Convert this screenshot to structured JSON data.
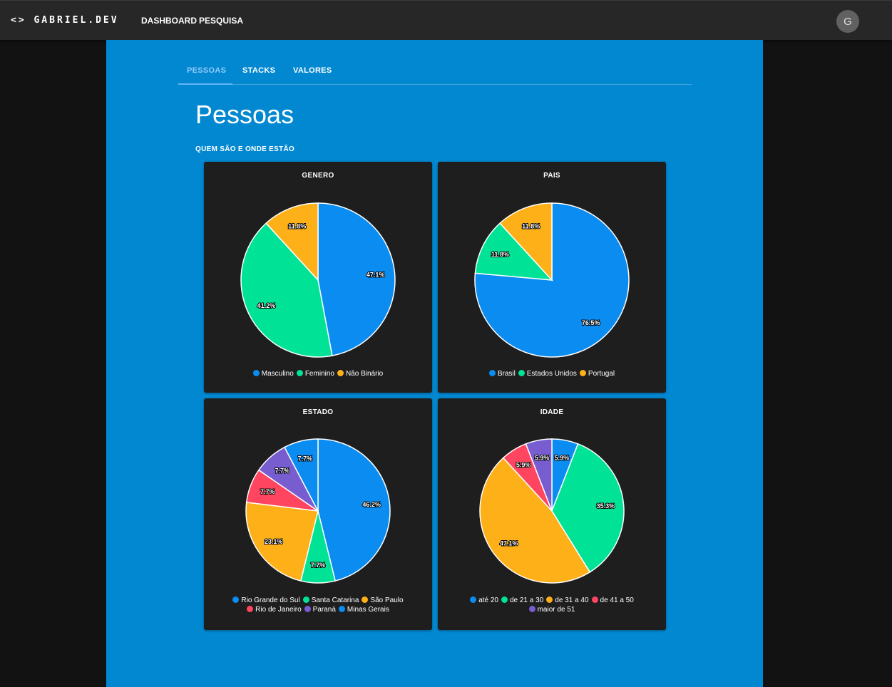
{
  "header": {
    "brand": "<> GABRIEL.DEV",
    "nav": [
      "DASHBOARD",
      "PESQUISA"
    ],
    "avatar_initial": "G"
  },
  "tabs": [
    "PESSOAS",
    "STACKS",
    "VALORES"
  ],
  "page": {
    "title": "Pessoas",
    "subtitle": "QUEM SÃO E ONDE ESTÃO"
  },
  "colors": {
    "main_bg": "#0288d1",
    "card_bg": "#1e1e1e",
    "topbar_bg": "#272727",
    "active_tab": "#64b5f6"
  },
  "chart_data": [
    {
      "type": "pie",
      "title": "GENERO",
      "categories": [
        "Masculino",
        "Feminino",
        "Não Binário"
      ],
      "values": [
        47.1,
        41.2,
        11.8
      ],
      "labels": [
        "47.1%",
        "41.2%",
        "11.8%"
      ],
      "colors": [
        "#0a8cf0",
        "#00e396",
        "#feb019"
      ]
    },
    {
      "type": "pie",
      "title": "PAIS",
      "categories": [
        "Brasil",
        "Estados Unidos",
        "Portugal"
      ],
      "values": [
        76.5,
        11.8,
        11.8
      ],
      "labels": [
        "76.5%",
        "11.8%",
        "11.8%"
      ],
      "colors": [
        "#0a8cf0",
        "#00e396",
        "#feb019"
      ]
    },
    {
      "type": "pie",
      "title": "ESTADO",
      "categories": [
        "Rio Grande do Sul",
        "Santa Catarina",
        "São Paulo",
        "Rio de Janeiro",
        "Paraná",
        "Minas Gerais"
      ],
      "values": [
        46.2,
        7.7,
        23.1,
        7.7,
        7.7,
        7.7
      ],
      "labels": [
        "46.2%",
        "7.7%",
        "23.1%",
        "7.7%",
        "7.7%",
        "7.7%"
      ],
      "colors": [
        "#0a8cf0",
        "#00e396",
        "#feb019",
        "#ff4560",
        "#775dd0",
        "#0a8cf0"
      ]
    },
    {
      "type": "pie",
      "title": "IDADE",
      "categories": [
        "até 20",
        "de 21 a 30",
        "de 31 a 40",
        "de 41 a 50",
        "maior de 51"
      ],
      "values": [
        5.9,
        35.3,
        47.1,
        5.9,
        5.9
      ],
      "labels": [
        "5.9%",
        "35.3%",
        "47.1%",
        "5.9%",
        "5.9%"
      ],
      "colors": [
        "#0a8cf0",
        "#00e396",
        "#feb019",
        "#ff4560",
        "#775dd0"
      ]
    }
  ]
}
